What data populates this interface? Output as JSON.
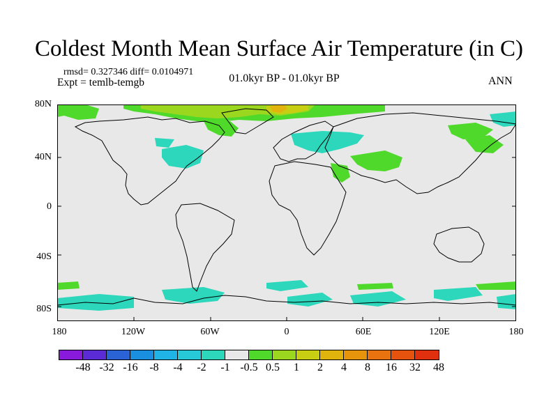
{
  "title": "Coldest Month Mean Surface Air Temperature (in C)",
  "stats": "rmsd= 0.327346  diff= 0.0104971",
  "experiment": "Expt = temlb-temgb",
  "period": "01.0kyr BP - 01.0kyr BP",
  "season": "ANN",
  "lat_labels": [
    "80N",
    "40N",
    "0",
    "40S",
    "80S"
  ],
  "lon_labels": [
    "180",
    "120W",
    "60W",
    "0",
    "60E",
    "120E",
    "180"
  ],
  "colorbar": {
    "colors": [
      "#8a1adb",
      "#5b2bd6",
      "#2a63d6",
      "#1a8fe0",
      "#20b3e6",
      "#27c9d8",
      "#2cd7bb",
      "#e8e8e8",
      "#4fd92a",
      "#9bd71f",
      "#c8cf12",
      "#e0b40c",
      "#e6940c",
      "#e8730f",
      "#e5530f",
      "#e0300d"
    ],
    "labels": [
      "-48",
      "-32",
      "-16",
      "-8",
      "-4",
      "-2",
      "-1",
      "-0.5",
      "0.5",
      "1",
      "2",
      "4",
      "8",
      "16",
      "32",
      "48"
    ]
  },
  "map_colors": {
    "background": "#e8e8e8",
    "neg_small": "#2cd7bb",
    "neg_medium": "#27c9d8",
    "pos_small": "#4fd92a",
    "pos_medium": "#9bd71f",
    "pos_large": "#c8cf12",
    "pos_larger": "#e0b40c"
  }
}
